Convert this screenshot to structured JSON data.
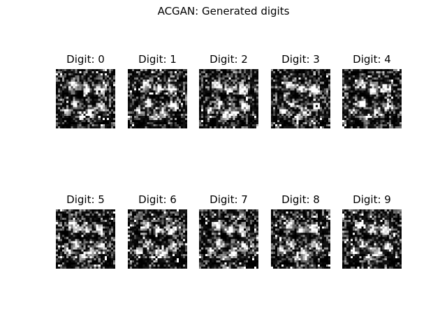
{
  "figure": {
    "title": "ACGAN: Generated digits",
    "colormap": "gray",
    "panels": [
      {
        "label": "Digit: 0",
        "digit": 0
      },
      {
        "label": "Digit: 1",
        "digit": 1
      },
      {
        "label": "Digit: 2",
        "digit": 2
      },
      {
        "label": "Digit: 3",
        "digit": 3
      },
      {
        "label": "Digit: 4",
        "digit": 4
      },
      {
        "label": "Digit: 5",
        "digit": 5
      },
      {
        "label": "Digit: 6",
        "digit": 6
      },
      {
        "label": "Digit: 7",
        "digit": 7
      },
      {
        "label": "Digit: 8",
        "digit": 8
      },
      {
        "label": "Digit: 9",
        "digit": 9
      }
    ]
  }
}
